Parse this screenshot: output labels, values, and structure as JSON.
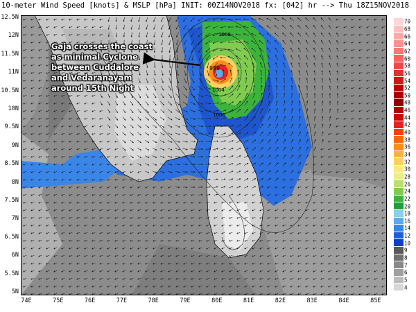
{
  "title": "10-meter Wind Speed [knots] &  MSLP [hPa] INIT: 00Z14NOV2018 fx: [042] hr --> Thu 18Z15NOV2018",
  "annotation": "Gaja crosses the coast as minimal Cyclone between Cuddalore and Vedaranayam around 15th Night",
  "lat_labels": [
    "12.5N",
    "12N",
    "11.5N",
    "11N",
    "10.5N",
    "10N",
    "9.5N",
    "9N",
    "8.5N",
    "8N",
    "7.5N",
    "7N",
    "6.5N",
    "6N",
    "5.5N",
    "5N"
  ],
  "lon_labels": [
    "74E",
    "75E",
    "76E",
    "77E",
    "78E",
    "79E",
    "80E",
    "81E",
    "82E",
    "83E",
    "84E",
    "85E"
  ],
  "isobar_labels": [
    "1008",
    "999",
    "1004",
    "1006"
  ],
  "colorbar": {
    "levels": [
      "70",
      "68",
      "66",
      "64",
      "62",
      "60",
      "58",
      "56",
      "54",
      "52",
      "50",
      "48",
      "46",
      "44",
      "42",
      "40",
      "38",
      "36",
      "34",
      "32",
      "30",
      "28",
      "26",
      "24",
      "22",
      "20",
      "18",
      "16",
      "14",
      "12",
      "10",
      "9",
      "8",
      "7",
      "6",
      "5",
      "4"
    ],
    "colors": [
      "#ffd6d6",
      "#ffc0c0",
      "#ffa8a8",
      "#ff9090",
      "#ff7878",
      "#ff6060",
      "#f04848",
      "#e03030",
      "#d01818",
      "#c00000",
      "#a80000",
      "#900000",
      "#b00000",
      "#d00000",
      "#e82020",
      "#ff4000",
      "#ff6800",
      "#ff8c1a",
      "#ffb040",
      "#ffd060",
      "#ffe880",
      "#e6f080",
      "#b8e070",
      "#80cc50",
      "#3cb43c",
      "#1e9e3c",
      "#87d0f0",
      "#5aaaf0",
      "#3a86e8",
      "#1e5fd8",
      "#1040c0",
      "#5a5a5a",
      "#707070",
      "#888888",
      "#a0a0a0",
      "#bcbcbc",
      "#d8d8d8"
    ]
  }
}
